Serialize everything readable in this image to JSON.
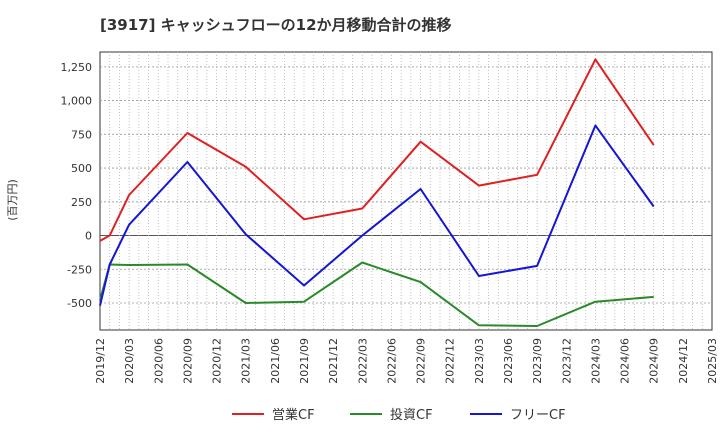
{
  "chart_data": {
    "type": "line",
    "title": "[3917]  キャッシュフローの12か月移動合計の推移",
    "ylabel": "(百万円)",
    "xlabel": "",
    "ylim": [
      -700,
      1360
    ],
    "yticks": [
      -500,
      -250,
      0,
      250,
      500,
      750,
      1000,
      1250
    ],
    "ytick_labels": [
      "-500",
      "-250",
      "0",
      "250",
      "500",
      "750",
      "1,000",
      "1,250"
    ],
    "x_start": "2019/12",
    "x_end": "2025/03",
    "x_ticks": [
      "2019/12",
      "2020/03",
      "2020/06",
      "2020/09",
      "2020/12",
      "2021/03",
      "2021/06",
      "2021/09",
      "2021/12",
      "2022/03",
      "2022/06",
      "2022/09",
      "2022/12",
      "2023/03",
      "2023/06",
      "2023/09",
      "2023/12",
      "2024/03",
      "2024/06",
      "2024/09",
      "2024/12",
      "2025/03"
    ],
    "legend_position": "bottom",
    "series": [
      {
        "name": "営業CF",
        "color": "#e02020",
        "x": [
          "2019/12",
          "2020/01",
          "2020/03",
          "2020/09",
          "2021/03",
          "2021/09",
          "2022/03",
          "2022/09",
          "2023/03",
          "2023/09",
          "2024/03",
          "2024/09"
        ],
        "values": [
          -40,
          0,
          300,
          760,
          510,
          120,
          200,
          695,
          370,
          450,
          1305,
          670
        ]
      },
      {
        "name": "投資CF",
        "color": "#2a8a2a",
        "x": [
          "2019/12",
          "2020/01",
          "2020/03",
          "2020/09",
          "2021/03",
          "2021/09",
          "2022/03",
          "2022/09",
          "2023/03",
          "2023/09",
          "2024/03",
          "2024/09"
        ],
        "values": [
          -480,
          -215,
          -218,
          -215,
          -500,
          -490,
          -200,
          -345,
          -665,
          -670,
          -490,
          -455
        ]
      },
      {
        "name": "フリーCF",
        "color": "#1515d8",
        "x": [
          "2019/12",
          "2020/01",
          "2020/03",
          "2020/09",
          "2021/03",
          "2021/09",
          "2022/03",
          "2022/09",
          "2023/03",
          "2023/09",
          "2024/03",
          "2024/09"
        ],
        "values": [
          -520,
          -215,
          80,
          545,
          10,
          -370,
          0,
          345,
          -300,
          -225,
          815,
          215
        ]
      }
    ]
  }
}
